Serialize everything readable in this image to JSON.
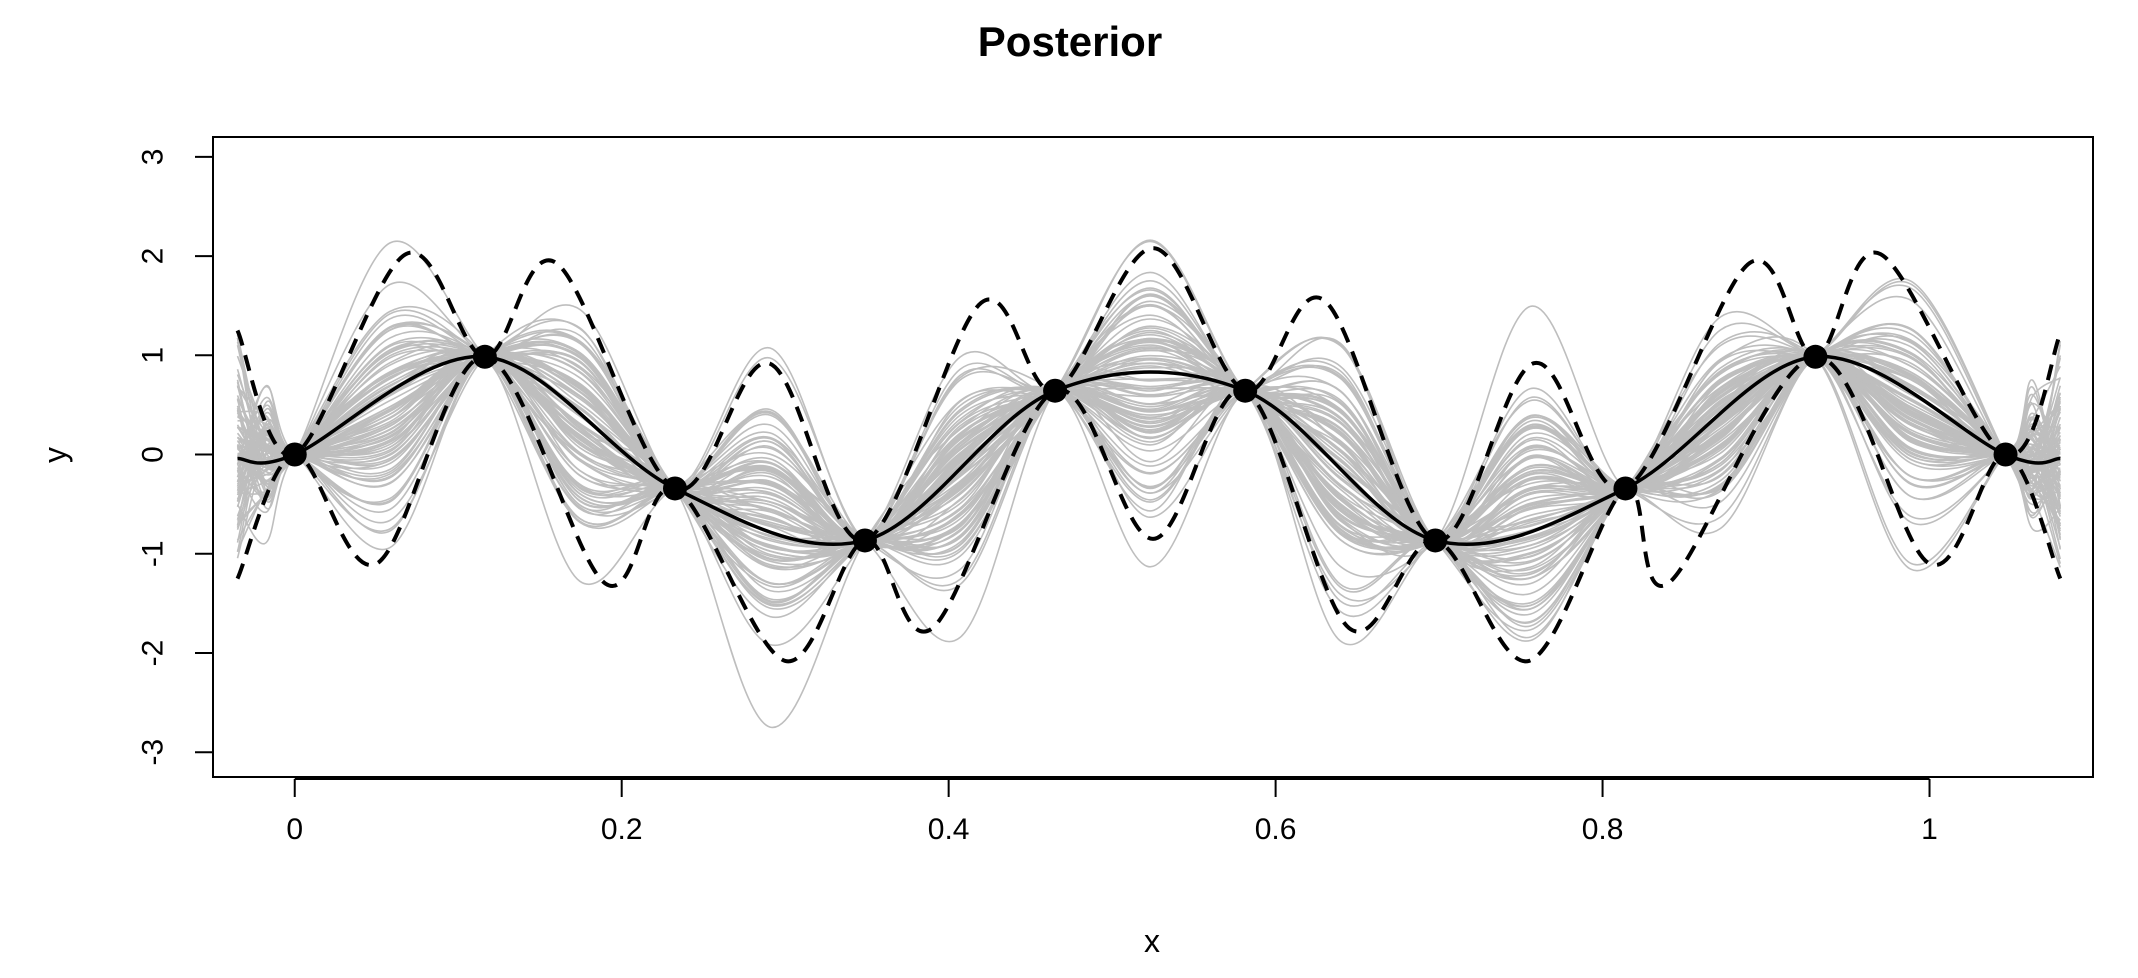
{
  "chart_data": {
    "type": "line",
    "title": "Posterior",
    "xlabel": "x",
    "ylabel": "y",
    "xlim": [
      -0.05,
      1.1
    ],
    "ylim": [
      -3.25,
      3.2
    ],
    "x_ticks": [
      0,
      0.2,
      0.4,
      0.6,
      0.8,
      1
    ],
    "x_tick_labels": [
      "0",
      "0.2",
      "0.4",
      "0.6",
      "0.8",
      "1"
    ],
    "y_ticks": [
      -3,
      -2,
      -1,
      0,
      1,
      2,
      3
    ],
    "y_tick_labels": [
      "-3",
      "-2",
      "-1",
      "0",
      "1",
      "2",
      "3"
    ],
    "grid": false,
    "legend": "none",
    "colors": {
      "mean": "#000000",
      "band": "#000000",
      "samples": "#bebebe",
      "points": "#000000"
    },
    "observed_points": {
      "x": [
        0,
        0.1163,
        0.2326,
        0.3488,
        0.4651,
        0.5814,
        0.6977,
        0.814,
        0.9302,
        1.0465
      ],
      "y": [
        0,
        0.985,
        -0.342,
        -0.866,
        0.643,
        0.643,
        -0.866,
        -0.342,
        0.985,
        0
      ]
    },
    "posterior_mean": {
      "x": [
        -0.035,
        0,
        0.1163,
        0.2326,
        0.3488,
        0.4651,
        0.5814,
        0.6977,
        0.814,
        0.9302,
        1.0465,
        1.08
      ],
      "y": [
        -0.04,
        0,
        0.985,
        -0.342,
        -0.866,
        0.643,
        0.643,
        -0.866,
        -0.342,
        0.985,
        0,
        -0.04
      ]
    },
    "upper_band": {
      "x": [
        -0.035,
        0,
        0.068,
        0.1163,
        0.16,
        0.2326,
        0.29,
        0.3488,
        0.42,
        0.4651,
        0.525,
        0.5814,
        0.63,
        0.6977,
        0.758,
        0.814,
        0.89,
        0.9302,
        0.97,
        1.0465,
        1.08
      ],
      "y": [
        1.25,
        0,
        2.02,
        0.985,
        1.93,
        -0.342,
        0.92,
        -0.866,
        1.53,
        0.643,
        2.08,
        0.643,
        1.55,
        -0.866,
        0.92,
        -0.342,
        1.93,
        0.985,
        2.02,
        0,
        1.22
      ]
    },
    "lower_band": {
      "x": [
        -0.035,
        0,
        0.05,
        0.1163,
        0.19,
        0.2326,
        0.3,
        0.3488,
        0.39,
        0.4651,
        0.525,
        0.5814,
        0.645,
        0.6977,
        0.755,
        0.814,
        0.84,
        0.9302,
        1.0,
        1.0465,
        1.08
      ],
      "y": [
        -1.25,
        0,
        -1.1,
        0.985,
        -1.3,
        -0.342,
        -2.08,
        -0.866,
        -1.75,
        0.643,
        -0.85,
        0.643,
        -1.75,
        -0.866,
        -2.08,
        -0.342,
        -1.3,
        0.985,
        -1.1,
        0,
        -1.25
      ]
    },
    "samples_description_count": 100
  }
}
